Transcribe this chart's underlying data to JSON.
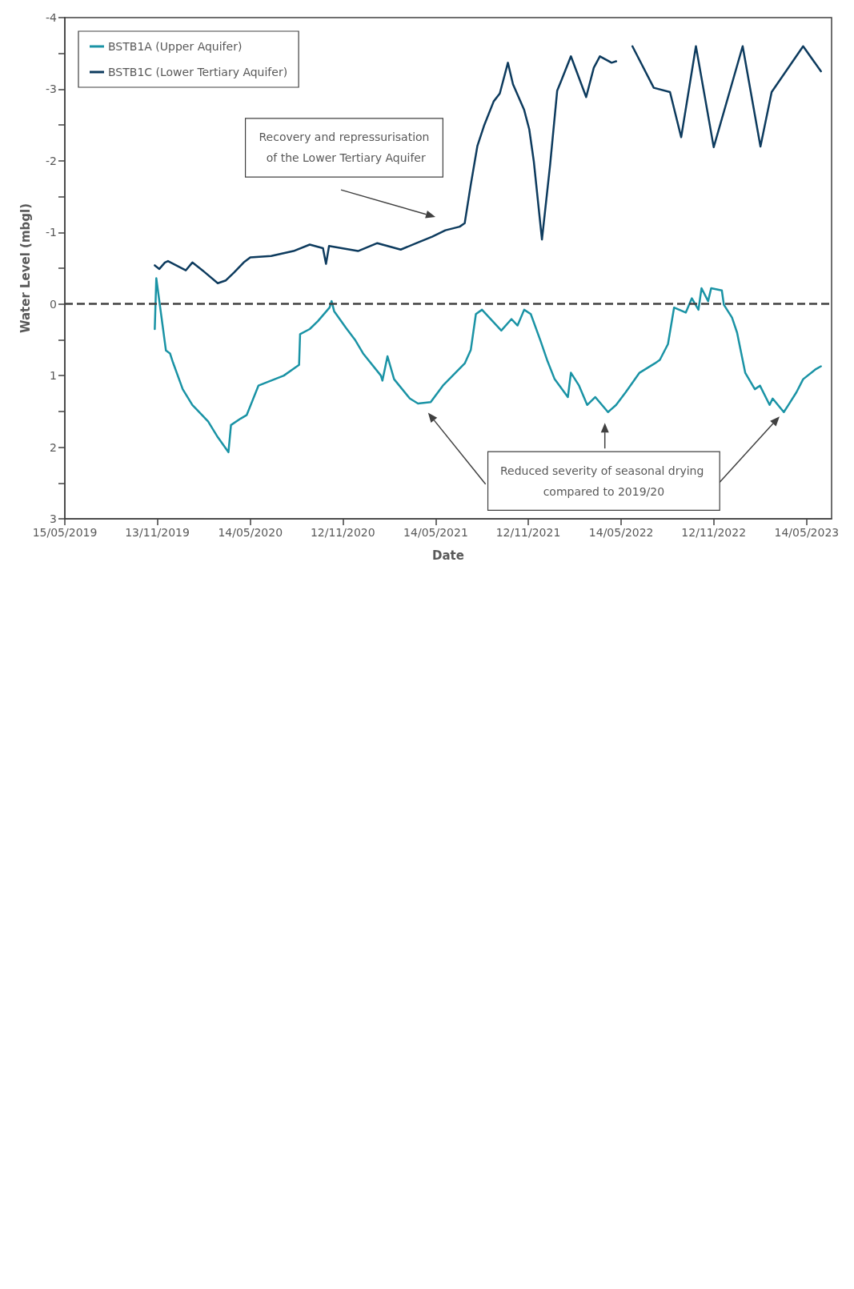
{
  "chart_data": {
    "type": "line",
    "xlabel": "Date",
    "ylabel": "Water Level (mbgl)",
    "xlim": [
      "2019-05-15",
      "2023-07-02"
    ],
    "ylim": [
      3,
      -4
    ],
    "xticks": [
      {
        "value": "2019-05-15",
        "label": "15/05/2019"
      },
      {
        "value": "2019-11-13",
        "label": "13/11/2019"
      },
      {
        "value": "2020-05-14",
        "label": "14/05/2020"
      },
      {
        "value": "2020-11-12",
        "label": "12/11/2020"
      },
      {
        "value": "2021-05-14",
        "label": "14/05/2021"
      },
      {
        "value": "2021-11-12",
        "label": "12/11/2021"
      },
      {
        "value": "2022-05-14",
        "label": "14/05/2022"
      },
      {
        "value": "2022-11-12",
        "label": "12/11/2022"
      },
      {
        "value": "2023-05-14",
        "label": "14/05/2023"
      }
    ],
    "yticks": [
      -4,
      {
        "value": -3.5,
        "label": null
      },
      -3,
      {
        "value": -2.5,
        "label": null
      },
      -2,
      {
        "value": -1.5,
        "label": null
      },
      -1,
      {
        "value": -0.5,
        "label": null
      },
      0,
      {
        "value": 0.5,
        "label": null
      },
      1,
      {
        "value": 1.5,
        "label": null
      },
      2,
      {
        "value": 2.5,
        "label": null
      },
      3
    ],
    "legend": "top left",
    "ref_lines": [
      {
        "axis": "y",
        "value": 0,
        "line_style": "dashed",
        "color": "#404040"
      }
    ],
    "annotations": [
      "Recovery and repressurisation of the Lower Tertiary Aquifer",
      "Reduced severity of seasonal drying compared to 2019/20"
    ],
    "series": [
      {
        "name": "BSTB1A (Upper Aquifer)",
        "color": "#1a93a5",
        "x": [
          "2019-11-08",
          "2019-11-11",
          "2019-11-30",
          "2019-12-08",
          "2019-12-14",
          "2020-01-02",
          "2020-01-21",
          "2020-02-21",
          "2020-03-11",
          "2020-04-01",
          "2020-04-06",
          "2020-04-25",
          "2020-05-07",
          "2020-05-30",
          "2020-07-19",
          "2020-08-14",
          "2020-08-18",
          "2020-08-20",
          "2020-09-08",
          "2020-09-24",
          "2020-10-17",
          "2020-10-21",
          "2020-10-26",
          "2020-11-18",
          "2020-12-07",
          "2020-12-22",
          "2021-01-26",
          "2021-01-29",
          "2021-02-08",
          "2021-02-21",
          "2021-03-24",
          "2021-04-09",
          "2021-05-04",
          "2021-05-28",
          "2021-07-10",
          "2021-07-22",
          "2021-08-01",
          "2021-08-13",
          "2021-09-20",
          "2021-10-10",
          "2021-10-22",
          "2021-11-04",
          "2021-11-17",
          "2021-12-06",
          "2021-12-19",
          "2022-01-03",
          "2022-01-29",
          "2022-02-04",
          "2022-02-20",
          "2022-03-08",
          "2022-03-24",
          "2022-04-18",
          "2022-05-04",
          "2022-05-23",
          "2022-06-19",
          "2022-07-19",
          "2022-07-29",
          "2022-08-14",
          "2022-08-26",
          "2022-09-18",
          "2022-09-30",
          "2022-10-13",
          "2022-10-19",
          "2022-11-01",
          "2022-11-07",
          "2022-11-28",
          "2022-12-02",
          "2022-12-18",
          "2022-12-28",
          "2023-01-13",
          "2023-02-01",
          "2023-02-11",
          "2023-03-02",
          "2023-03-08",
          "2023-03-30",
          "2023-04-08",
          "2023-04-24",
          "2023-05-07",
          "2023-06-01",
          "2023-06-11"
        ],
        "values": [
          0.35,
          -0.36,
          0.65,
          0.69,
          0.82,
          1.19,
          1.41,
          1.64,
          1.86,
          2.07,
          1.69,
          1.6,
          1.55,
          1.14,
          1.0,
          0.87,
          0.85,
          0.42,
          0.35,
          0.24,
          0.05,
          -0.04,
          0.1,
          0.33,
          0.51,
          0.69,
          1.0,
          1.07,
          0.73,
          1.05,
          1.32,
          1.39,
          1.37,
          1.14,
          0.83,
          0.64,
          0.14,
          0.08,
          0.37,
          0.21,
          0.3,
          0.08,
          0.14,
          0.51,
          0.78,
          1.05,
          1.3,
          0.96,
          1.14,
          1.41,
          1.3,
          1.51,
          1.41,
          1.23,
          0.96,
          0.83,
          0.78,
          0.56,
          0.05,
          0.12,
          -0.08,
          0.08,
          -0.22,
          -0.04,
          -0.22,
          -0.19,
          0.01,
          0.19,
          0.4,
          0.96,
          1.19,
          1.14,
          1.41,
          1.32,
          1.51,
          1.41,
          1.23,
          1.05,
          0.91,
          0.87
        ]
      },
      {
        "name": "BSTB1C (Lower Tertiary Aquifer)",
        "color": "#0d3b5e",
        "x": [
          "2019-11-08",
          "2019-11-17",
          "2019-11-28",
          "2019-12-04",
          "2020-01-08",
          "2020-01-21",
          "2020-02-15",
          "2020-03-11",
          "2020-03-27",
          "2020-04-12",
          "2020-05-01",
          "2020-05-14",
          "2020-06-24",
          "2020-08-07",
          "2020-09-08",
          "2020-10-04",
          "2020-10-10",
          "2020-10-16",
          "2020-12-12",
          "2021-01-19",
          "2021-03-06",
          "2021-04-06",
          "2021-05-07",
          "2021-06-02",
          "2021-06-30",
          "2021-07-10",
          "2021-07-22",
          "2021-08-04",
          "2021-08-17",
          "2021-09-05",
          "2021-09-17",
          "2021-10-03",
          "2021-10-13",
          "2021-11-04",
          "2021-11-14",
          "2021-11-23",
          "2021-12-09",
          "2021-12-25",
          "2022-01-08",
          "2022-01-16",
          "2022-02-04",
          "2022-03-06",
          "2022-03-21",
          "2022-04-02",
          "2022-04-25",
          "2022-05-04",
          "2022-05-20",
          "2022-06-05",
          "2022-07-17",
          "2022-08-18",
          "2022-09-09",
          "2022-10-08",
          "2022-11-12",
          "2023-01-08",
          "2023-02-12",
          "2023-03-06",
          "2023-05-07",
          "2023-06-11"
        ],
        "values": [
          -0.54,
          -0.49,
          -0.58,
          -0.6,
          -0.47,
          -0.58,
          -0.44,
          -0.29,
          -0.33,
          -0.44,
          -0.58,
          -0.65,
          -0.67,
          -0.74,
          -0.83,
          -0.78,
          -0.56,
          -0.81,
          -0.74,
          -0.85,
          -0.76,
          -0.85,
          -0.94,
          -1.03,
          -1.08,
          -1.13,
          -1.67,
          -2.21,
          -2.49,
          -2.83,
          -2.94,
          -3.37,
          -3.07,
          -2.71,
          -2.44,
          -1.99,
          -0.9,
          -1.94,
          -2.98,
          -3.12,
          -3.46,
          -2.89,
          -3.3,
          -3.46,
          -3.37,
          -3.39,
          null,
          -3.6,
          -3.02,
          -2.96,
          -2.33,
          -3.6,
          -2.19,
          -3.6,
          -2.2,
          -2.96,
          -3.6,
          -3.25
        ]
      }
    ]
  }
}
